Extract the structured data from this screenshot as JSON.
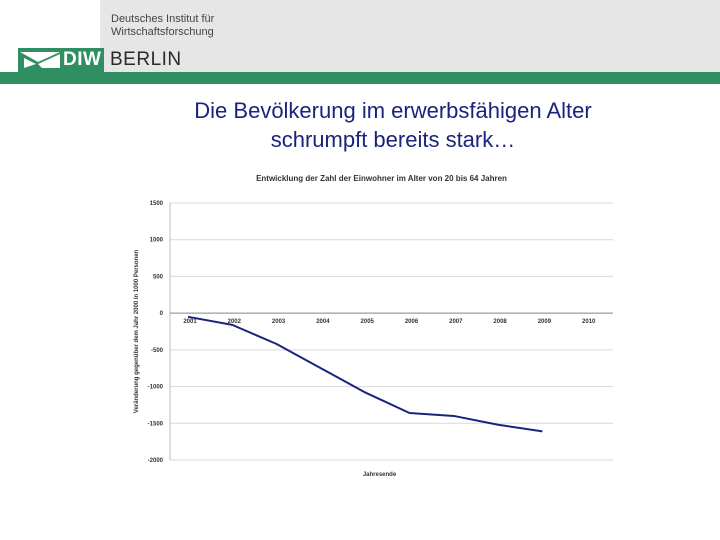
{
  "header": {
    "institute_line1": "Deutsches Institut für",
    "institute_line2": "Wirtschaftsforschung",
    "logo_diw": "DIW",
    "logo_city": "BERLIN"
  },
  "slide": {
    "title_line1": "Die Bevölkerung im erwerbsfähigen Alter",
    "title_line2": "schrumpft bereits stark…"
  },
  "colors": {
    "brand_green": "#2f8f63",
    "title_blue": "#1a237e",
    "series_line": "#1a237e"
  },
  "chart_data": {
    "type": "line",
    "title": "Entwicklung der Zahl der Einwohner im Alter von 20 bis 64 Jahren",
    "xlabel": "Jahresende",
    "ylabel": "Veränderung gegenüber dem Jahr 2000 in 1000 Personen",
    "x": [
      "2001",
      "2002",
      "2003",
      "2004",
      "2005",
      "2006",
      "2007",
      "2008",
      "2009",
      "2010"
    ],
    "series": [
      {
        "values": [
          -50,
          -160,
          -420,
          -750,
          -1080,
          -1360,
          -1400,
          -1520,
          -1610,
          null
        ]
      }
    ],
    "ylim": [
      -2000,
      1500
    ],
    "yticks": [
      1500,
      1000,
      500,
      0,
      -500,
      -1000,
      -1500,
      -2000
    ],
    "grid": true,
    "legend": "none"
  }
}
